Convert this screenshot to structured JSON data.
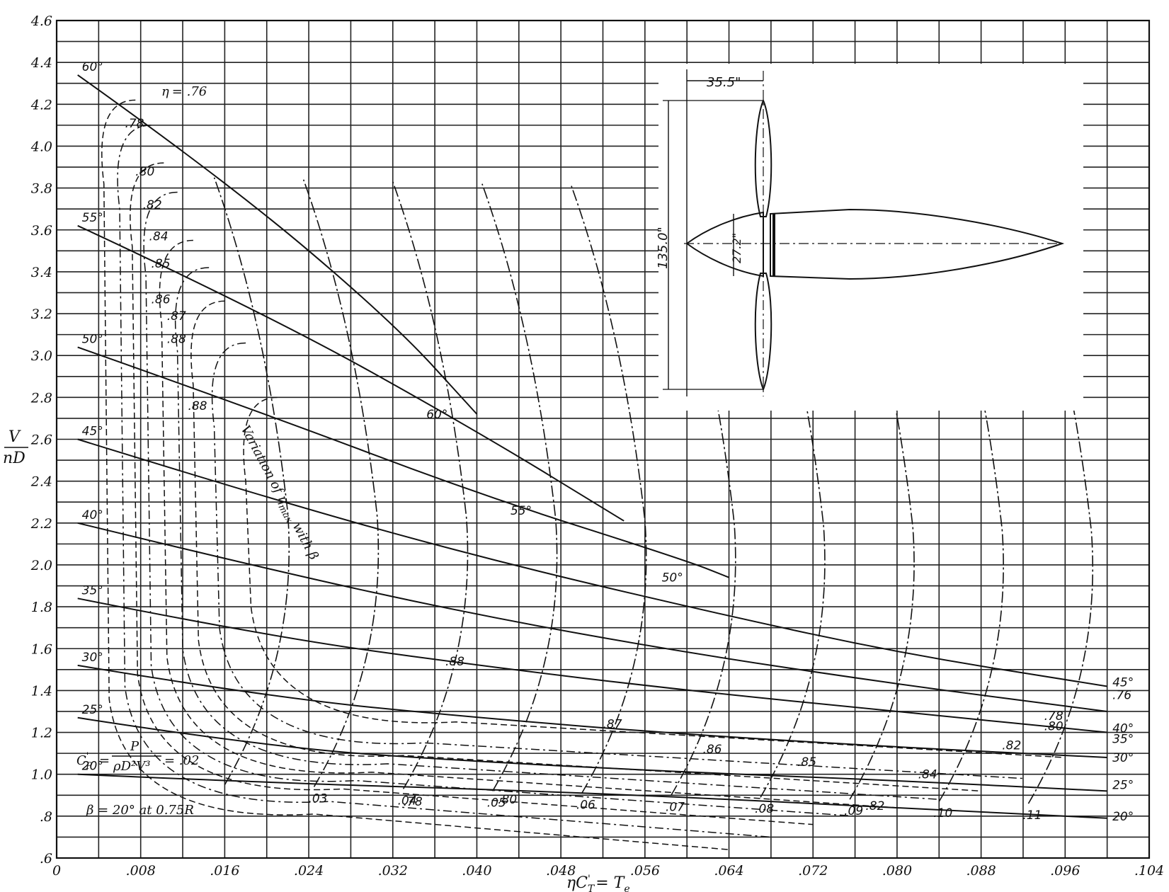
{
  "chart_data": {
    "type": "line",
    "title": "",
    "xlabel": "ηC_T' = T_e",
    "ylabel": "V / nD",
    "xlim": [
      0,
      0.104
    ],
    "ylim": [
      0.6,
      4.6
    ],
    "grid": true,
    "x_tick_labels": [
      "0",
      ".008",
      ".016",
      ".024",
      ".032",
      ".040",
      ".048",
      ".056",
      ".064",
      ".072",
      ".080",
      ".088",
      ".096",
      ".104"
    ],
    "y_tick_labels": [
      ".6",
      ".8",
      "1.0",
      "1.2",
      "1.4",
      "1.6",
      "1.8",
      "2.0",
      "2.2",
      "2.4",
      "2.6",
      "2.8",
      "3.0",
      "3.2",
      "3.4",
      "3.6",
      "3.8",
      "4.0",
      "4.2",
      "4.4",
      "4.6"
    ],
    "blade_angle_curves": [
      {
        "name": "20°",
        "points": [
          [
            0.002,
            1.0
          ],
          [
            0.02,
            0.96
          ],
          [
            0.04,
            0.93
          ],
          [
            0.06,
            0.89
          ],
          [
            0.08,
            0.84
          ],
          [
            0.1,
            0.79
          ]
        ]
      },
      {
        "name": "25°",
        "points": [
          [
            0.002,
            1.27
          ],
          [
            0.02,
            1.13
          ],
          [
            0.04,
            1.06
          ],
          [
            0.06,
            1.01
          ],
          [
            0.08,
            0.97
          ],
          [
            0.1,
            0.92
          ]
        ]
      },
      {
        "name": "30°",
        "points": [
          [
            0.002,
            1.52
          ],
          [
            0.02,
            1.37
          ],
          [
            0.04,
            1.27
          ],
          [
            0.06,
            1.19
          ],
          [
            0.08,
            1.13
          ],
          [
            0.1,
            1.08
          ]
        ]
      },
      {
        "name": "35°",
        "points": [
          [
            0.002,
            1.84
          ],
          [
            0.02,
            1.66
          ],
          [
            0.04,
            1.52
          ],
          [
            0.06,
            1.4
          ],
          [
            0.08,
            1.3
          ],
          [
            0.1,
            1.2
          ]
        ]
      },
      {
        "name": "40°",
        "points": [
          [
            0.002,
            2.2
          ],
          [
            0.02,
            1.98
          ],
          [
            0.04,
            1.76
          ],
          [
            0.06,
            1.58
          ],
          [
            0.08,
            1.43
          ],
          [
            0.1,
            1.3
          ]
        ]
      },
      {
        "name": "45°",
        "points": [
          [
            0.002,
            2.6
          ],
          [
            0.02,
            2.32
          ],
          [
            0.04,
            2.04
          ],
          [
            0.06,
            1.8
          ],
          [
            0.08,
            1.58
          ],
          [
            0.1,
            1.42
          ]
        ]
      },
      {
        "name": "50°",
        "points": [
          [
            0.002,
            3.04
          ],
          [
            0.02,
            2.72
          ],
          [
            0.04,
            2.34
          ],
          [
            0.06,
            2.02
          ],
          [
            0.064,
            1.94
          ]
        ]
      },
      {
        "name": "55°",
        "points": [
          [
            0.002,
            3.62
          ],
          [
            0.02,
            3.2
          ],
          [
            0.04,
            2.64
          ],
          [
            0.054,
            2.21
          ]
        ]
      },
      {
        "name": "60°",
        "points": [
          [
            0.002,
            4.34
          ],
          [
            0.016,
            3.84
          ],
          [
            0.032,
            3.16
          ],
          [
            0.04,
            2.72
          ]
        ]
      }
    ],
    "efficiency_contour_labels": [
      "η = .76",
      ".78",
      ".80",
      ".82",
      ".84",
      ".85",
      ".86",
      ".87",
      ".88",
      ".88",
      ".87",
      ".86",
      ".85",
      ".84",
      ".82",
      ".80",
      ".78",
      ".76"
    ],
    "power_coefficient_labels": [
      ".02",
      ".03",
      ".04",
      ".05",
      ".06",
      ".07",
      ".08",
      ".09",
      ".10",
      ".11"
    ],
    "right_edge_labels": [
      "45°",
      ".76",
      "40°",
      ".78",
      ".80",
      "35°",
      ".82",
      "30°",
      "25°",
      "20°"
    ],
    "upper_angle_labels": [
      "60°",
      "55°",
      "50°"
    ],
    "annotation_max_efficiency": "Variation of η_max with β",
    "annotation_cp": "C_P' = P / ρD²V³ = .02",
    "annotation_beta": "β = 20° at 0.75R",
    "inset_dimensions": [
      "35.5\"",
      "135.0\"",
      "27.2\""
    ]
  },
  "axis": {
    "x_label_main": "ηC",
    "x_label_sup": "'",
    "x_label_sub": "T",
    "x_label_eq": "= T",
    "x_label_eq_sub": "e",
    "y_label_num": "V",
    "y_label_den": "nD"
  },
  "annotations": {
    "eta_prefix": "η",
    "eta_value": "= .76",
    "max_eff": "Variation of η",
    "max_eff_sub": "max",
    "max_eff_tail": "with β",
    "cp_lhs": "C",
    "cp_lhs_sub": "P",
    "cp_lhs_sup": "'",
    "cp_num": "P",
    "cp_den": "ρD²V³",
    "cp_rhs": "= .02",
    "beta": "β = 20° at 0.75R"
  },
  "inset": {
    "dim_hub": "35.5\"",
    "dim_span": "135.0\"",
    "dim_body": "27.2\""
  }
}
